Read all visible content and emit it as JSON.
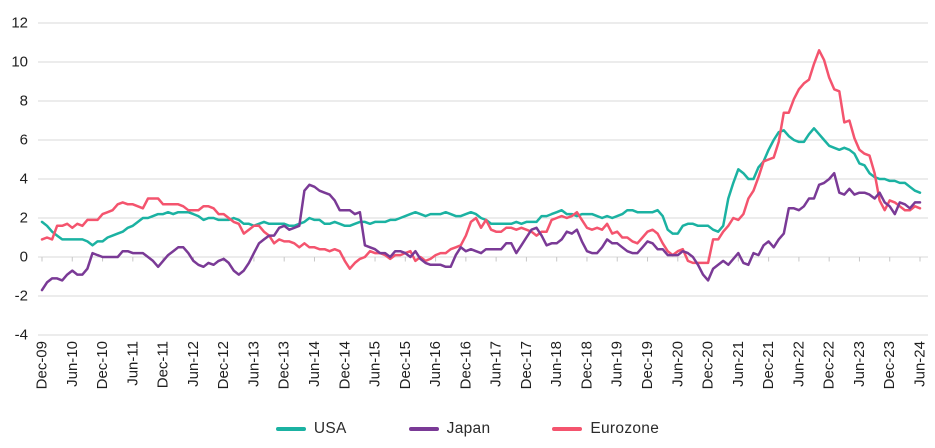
{
  "chart_data": {
    "type": "line",
    "title": "",
    "xlabel": "",
    "ylabel": "",
    "grid": "horizontal",
    "legend_position": "bottom",
    "ylim": [
      -4,
      12
    ],
    "y_ticks": [
      12,
      10,
      8,
      6,
      4,
      2,
      0,
      -2,
      -4
    ],
    "x_tick_interval_months": 6,
    "x_tick_labels": [
      "Dec-09",
      "Jun-10",
      "Dec-10",
      "Jun-11",
      "Dec-11",
      "Jun-12",
      "Dec-12",
      "Jun-13",
      "Dec-13",
      "Jun-14",
      "Dec-14",
      "Jun-15",
      "Dec-15",
      "Jun-16",
      "Dec-16",
      "Jun-17",
      "Dec-17",
      "Jun-18",
      "Dec-18",
      "Jun-19",
      "Dec-19",
      "Jun-20",
      "Dec-20",
      "Jun-21",
      "Dec-21",
      "Jun-22",
      "Dec-22",
      "Jun-23",
      "Dec-23",
      "Jun-24"
    ],
    "series": [
      {
        "name": "USA",
        "color": "#1bb2a2",
        "values": [
          1.8,
          1.6,
          1.3,
          1.1,
          0.9,
          0.9,
          0.9,
          0.9,
          0.9,
          0.8,
          0.6,
          0.8,
          0.8,
          1.0,
          1.1,
          1.2,
          1.3,
          1.5,
          1.6,
          1.8,
          2.0,
          2.0,
          2.1,
          2.2,
          2.2,
          2.3,
          2.2,
          2.3,
          2.3,
          2.3,
          2.2,
          2.1,
          1.9,
          2.0,
          2.0,
          1.9,
          1.9,
          1.9,
          2.0,
          1.9,
          1.7,
          1.7,
          1.6,
          1.7,
          1.8,
          1.7,
          1.7,
          1.7,
          1.7,
          1.6,
          1.6,
          1.7,
          1.8,
          2.0,
          1.9,
          1.9,
          1.7,
          1.7,
          1.8,
          1.7,
          1.6,
          1.6,
          1.7,
          1.8,
          1.8,
          1.7,
          1.8,
          1.8,
          1.8,
          1.9,
          1.9,
          2.0,
          2.1,
          2.2,
          2.3,
          2.2,
          2.1,
          2.2,
          2.2,
          2.2,
          2.3,
          2.2,
          2.1,
          2.1,
          2.2,
          2.3,
          2.2,
          2.0,
          1.9,
          1.7,
          1.7,
          1.7,
          1.7,
          1.7,
          1.8,
          1.7,
          1.8,
          1.8,
          1.8,
          2.1,
          2.1,
          2.2,
          2.3,
          2.4,
          2.2,
          2.2,
          2.1,
          2.2,
          2.2,
          2.2,
          2.1,
          2.0,
          2.1,
          2.0,
          2.1,
          2.2,
          2.4,
          2.4,
          2.3,
          2.3,
          2.3,
          2.3,
          2.4,
          2.1,
          1.4,
          1.2,
          1.2,
          1.6,
          1.7,
          1.7,
          1.6,
          1.6,
          1.6,
          1.4,
          1.3,
          1.6,
          3.0,
          3.8,
          4.5,
          4.3,
          4.0,
          4.0,
          4.6,
          4.9,
          5.5,
          6.0,
          6.4,
          6.5,
          6.2,
          6.0,
          5.9,
          5.9,
          6.3,
          6.6,
          6.3,
          6.0,
          5.7,
          5.6,
          5.5,
          5.6,
          5.5,
          5.3,
          4.8,
          4.7,
          4.3,
          4.1,
          4.0,
          4.0,
          3.9,
          3.9,
          3.8,
          3.8,
          3.6,
          3.4,
          3.3
        ]
      },
      {
        "name": "Japan",
        "color": "#7a3a96",
        "values": [
          -1.7,
          -1.3,
          -1.1,
          -1.1,
          -1.2,
          -0.9,
          -0.7,
          -0.9,
          -0.9,
          -0.6,
          0.2,
          0.1,
          0.0,
          0.0,
          0.0,
          0.0,
          0.3,
          0.3,
          0.2,
          0.2,
          0.2,
          0.0,
          -0.2,
          -0.5,
          -0.2,
          0.1,
          0.3,
          0.5,
          0.5,
          0.2,
          -0.2,
          -0.4,
          -0.5,
          -0.3,
          -0.4,
          -0.2,
          -0.1,
          -0.3,
          -0.7,
          -0.9,
          -0.7,
          -0.3,
          0.2,
          0.7,
          0.9,
          1.1,
          1.1,
          1.5,
          1.6,
          1.4,
          1.5,
          1.6,
          3.4,
          3.7,
          3.6,
          3.4,
          3.3,
          3.2,
          2.9,
          2.4,
          2.4,
          2.4,
          2.2,
          2.3,
          0.6,
          0.5,
          0.4,
          0.2,
          0.2,
          0.0,
          0.3,
          0.3,
          0.2,
          0.0,
          0.3,
          -0.1,
          -0.3,
          -0.4,
          -0.4,
          -0.4,
          -0.5,
          -0.5,
          0.1,
          0.5,
          0.3,
          0.4,
          0.3,
          0.2,
          0.4,
          0.4,
          0.4,
          0.4,
          0.7,
          0.7,
          0.2,
          0.6,
          1.0,
          1.4,
          1.5,
          1.1,
          0.6,
          0.7,
          0.7,
          0.9,
          1.3,
          1.2,
          1.4,
          0.8,
          0.3,
          0.2,
          0.2,
          0.5,
          0.9,
          0.7,
          0.7,
          0.5,
          0.3,
          0.2,
          0.2,
          0.5,
          0.8,
          0.7,
          0.4,
          0.4,
          0.1,
          0.1,
          0.1,
          0.3,
          0.2,
          0.0,
          -0.4,
          -0.9,
          -1.2,
          -0.6,
          -0.4,
          -0.2,
          -0.4,
          -0.1,
          0.2,
          -0.3,
          -0.4,
          0.2,
          0.1,
          0.6,
          0.8,
          0.5,
          0.9,
          1.2,
          2.5,
          2.5,
          2.4,
          2.6,
          3.0,
          3.0,
          3.7,
          3.8,
          4.0,
          4.3,
          3.3,
          3.2,
          3.5,
          3.2,
          3.3,
          3.3,
          3.2,
          3.0,
          3.3,
          2.8,
          2.6,
          2.2,
          2.8,
          2.7,
          2.5,
          2.8,
          2.8
        ]
      },
      {
        "name": "Eurozone",
        "color": "#f4546e",
        "values": [
          0.9,
          1.0,
          0.9,
          1.6,
          1.6,
          1.7,
          1.5,
          1.7,
          1.6,
          1.9,
          1.9,
          1.9,
          2.2,
          2.3,
          2.4,
          2.7,
          2.8,
          2.7,
          2.7,
          2.6,
          2.5,
          3.0,
          3.0,
          3.0,
          2.7,
          2.7,
          2.7,
          2.7,
          2.6,
          2.4,
          2.4,
          2.4,
          2.6,
          2.6,
          2.5,
          2.2,
          2.2,
          2.0,
          1.8,
          1.7,
          1.2,
          1.4,
          1.6,
          1.6,
          1.3,
          1.1,
          0.7,
          0.9,
          0.8,
          0.8,
          0.7,
          0.5,
          0.7,
          0.5,
          0.5,
          0.4,
          0.4,
          0.3,
          0.4,
          0.3,
          -0.2,
          -0.6,
          -0.3,
          -0.1,
          0.0,
          0.3,
          0.2,
          0.2,
          0.1,
          -0.1,
          0.1,
          0.1,
          0.2,
          0.3,
          -0.2,
          0.0,
          -0.2,
          -0.1,
          0.1,
          0.2,
          0.2,
          0.4,
          0.5,
          0.6,
          1.1,
          1.8,
          2.0,
          1.5,
          1.9,
          1.4,
          1.3,
          1.3,
          1.5,
          1.5,
          1.4,
          1.5,
          1.4,
          1.3,
          1.1,
          1.3,
          1.3,
          1.9,
          2.0,
          2.1,
          2.0,
          2.1,
          2.3,
          1.9,
          1.5,
          1.4,
          1.5,
          1.4,
          1.7,
          1.2,
          1.3,
          1.0,
          1.0,
          0.8,
          0.7,
          1.0,
          1.3,
          1.4,
          1.2,
          0.7,
          0.3,
          0.1,
          0.3,
          0.4,
          -0.2,
          -0.3,
          -0.3,
          -0.3,
          -0.3,
          0.9,
          0.9,
          1.3,
          1.6,
          2.0,
          1.9,
          2.2,
          3.0,
          3.4,
          4.1,
          4.9,
          5.0,
          5.1,
          5.9,
          7.4,
          7.4,
          8.1,
          8.6,
          8.9,
          9.1,
          9.9,
          10.6,
          10.1,
          9.2,
          8.6,
          8.5,
          6.9,
          7.0,
          6.1,
          5.5,
          5.3,
          5.2,
          4.3,
          2.9,
          2.4,
          2.9,
          2.8,
          2.6,
          2.4,
          2.4,
          2.6,
          2.5
        ]
      }
    ]
  },
  "style": {
    "gridline_color": "#d9d9d9",
    "tick_color": "#c7c7c7",
    "axis_text_color": "#1f1f1f",
    "background": "#ffffff"
  }
}
